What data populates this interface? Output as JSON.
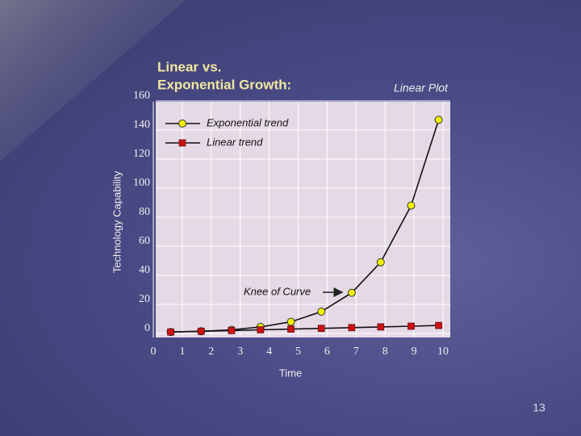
{
  "chart_data": {
    "type": "line",
    "title": [
      "Linear vs.",
      "Exponential Growth:"
    ],
    "subtitle": "Linear Plot",
    "x_label": "Time",
    "y_label": "Technology Capability",
    "annotation": "Knee of Curve",
    "xlim": [
      0,
      10
    ],
    "xticks": [
      0,
      1,
      2,
      3,
      4,
      5,
      6,
      7,
      8,
      9,
      10
    ],
    "ylim": [
      0,
      160
    ],
    "yticks": [
      0,
      20,
      40,
      60,
      80,
      100,
      120,
      140,
      160
    ],
    "grid": true,
    "legend": "upper left",
    "x": [
      0.6,
      1.65,
      2.7,
      3.7,
      4.75,
      5.8,
      6.85,
      7.85,
      8.9,
      9.85
    ],
    "series": [
      {
        "name": "Exponential trend",
        "color": "#f2f200",
        "marker": "circle",
        "values": [
          1,
          1.5,
          2.5,
          4.5,
          8,
          15,
          28,
          49,
          88,
          147
        ]
      },
      {
        "name": "Linear trend",
        "color": "#cc1111",
        "marker": "square",
        "values": [
          1,
          1.5,
          2,
          2.5,
          3,
          3.5,
          4,
          4.5,
          5,
          5.5
        ]
      }
    ]
  },
  "page_number": "13"
}
